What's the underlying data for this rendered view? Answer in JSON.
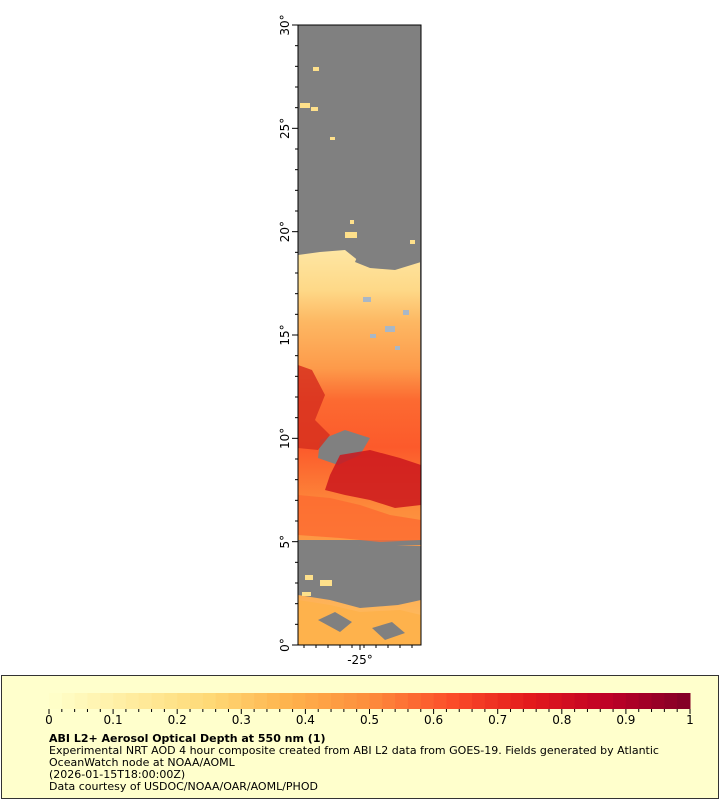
{
  "map": {
    "lat_min": 0,
    "lat_max": 30,
    "lat_ticks": [
      {
        "value": 0,
        "label": "0°"
      },
      {
        "value": 5,
        "label": "5°"
      },
      {
        "value": 10,
        "label": "10°"
      },
      {
        "value": 15,
        "label": "15°"
      },
      {
        "value": 20,
        "label": "20°"
      },
      {
        "value": 25,
        "label": "25°"
      },
      {
        "value": 30,
        "label": "30°"
      }
    ],
    "lon_ticks": [
      {
        "value": -25,
        "label": "-25°"
      }
    ],
    "nodata_color": "#808080",
    "land_color": "#a9b7c6"
  },
  "legend": {
    "title": "ABI L2+ Aerosol Optical Depth at 550 nm (1)",
    "description": "Experimental NRT AOD 4 hour composite created from ABI L2 data from GOES-19. Fields generated by Atlantic OceanWatch node at NOAA/AOML",
    "timestamp": "(2026-01-15T18:00:00Z)",
    "credit": "Data courtesy of USDOC/NOAA/OAR/AOML/PHOD",
    "background_color": "#ffffcc",
    "colorbar": {
      "min": 0,
      "max": 1,
      "tick_labels": [
        "0",
        "0.1",
        "0.2",
        "0.3",
        "0.4",
        "0.5",
        "0.6",
        "0.7",
        "0.8",
        "0.9",
        "1"
      ],
      "colors": [
        "#ffffcc",
        "#ffeda0",
        "#fed976",
        "#feb24c",
        "#fd8d3c",
        "#fc4e2a",
        "#e31a1c",
        "#bd0026",
        "#800026"
      ]
    }
  }
}
